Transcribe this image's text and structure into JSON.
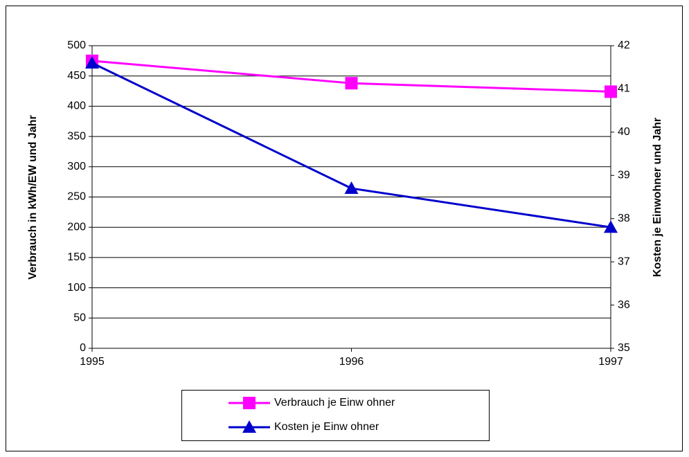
{
  "chart_data": {
    "type": "line",
    "x": [
      1995,
      1996,
      1997
    ],
    "xlim": [
      1995,
      1997
    ],
    "xticks": [
      1995,
      1996,
      1997
    ],
    "ylim": [
      0,
      500
    ],
    "yticks": [
      0,
      50,
      100,
      150,
      200,
      250,
      300,
      350,
      400,
      450,
      500
    ],
    "y2lim": [
      35,
      42
    ],
    "y2ticks": [
      35,
      36,
      37,
      38,
      39,
      40,
      41,
      42
    ],
    "ylabel": "Verbrauch in kWh/EW und Jahr",
    "y2label": "Kosten je Einwohner und Jahr",
    "grid": true,
    "legend": "bottom",
    "series": [
      {
        "name": "Verbrauch je Einw ohner",
        "color": "#ff00ff",
        "marker": "square",
        "values": [
          475,
          438,
          424
        ]
      },
      {
        "name": "Kosten je Einw ohner",
        "color": "#0000cc",
        "marker": "triangle",
        "axis": "y2",
        "values": [
          41.6,
          38.7,
          37.8
        ]
      }
    ]
  }
}
